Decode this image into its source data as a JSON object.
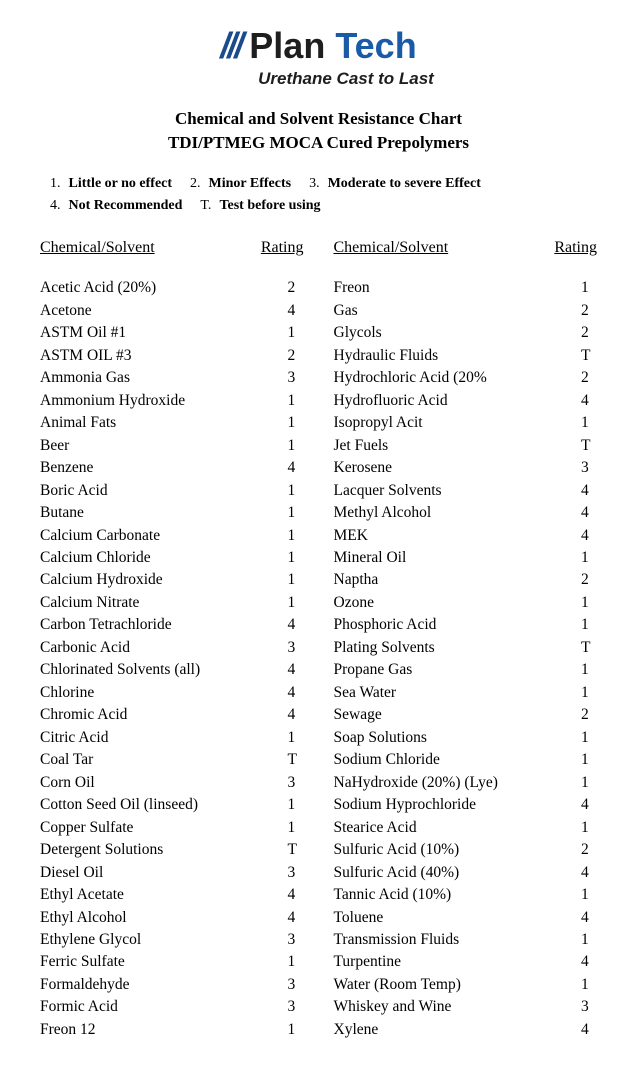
{
  "logo": {
    "plan": "Plan",
    "tech": "Tech",
    "tagline": "Urethane Cast to Last"
  },
  "title1": "Chemical and Solvent Resistance Chart",
  "title2": "TDI/PTMEG MOCA Cured Prepolymers",
  "legend": {
    "n1": "1.",
    "l1": "Little or no effect",
    "n2": "2.",
    "l2": "Minor Effects",
    "n3": "3.",
    "l3": "Moderate to severe Effect",
    "n4": "4.",
    "l4": "Not Recommended",
    "nT": "T.",
    "lT": "Test before using"
  },
  "headers": {
    "chem": "Chemical/Solvent",
    "rating": "Rating"
  },
  "left": [
    {
      "c": "Acetic Acid (20%)",
      "r": "2"
    },
    {
      "c": "Acetone",
      "r": "4"
    },
    {
      "c": "ASTM Oil   #1",
      "r": "1"
    },
    {
      "c": "ASTM OIL #3",
      "r": "2"
    },
    {
      "c": "Ammonia Gas",
      "r": "3"
    },
    {
      "c": "Ammonium Hydroxide",
      "r": "1"
    },
    {
      "c": "Animal Fats",
      "r": "1"
    },
    {
      "c": "Beer",
      "r": "1"
    },
    {
      "c": "Benzene",
      "r": "4"
    },
    {
      "c": "Boric Acid",
      "r": "1"
    },
    {
      "c": "Butane",
      "r": "1"
    },
    {
      "c": "Calcium Carbonate",
      "r": "1"
    },
    {
      "c": "Calcium Chloride",
      "r": "1"
    },
    {
      "c": "Calcium Hydroxide",
      "r": "1"
    },
    {
      "c": "Calcium Nitrate",
      "r": "1"
    },
    {
      "c": "Carbon Tetrachloride",
      "r": "4"
    },
    {
      "c": "Carbonic Acid",
      "r": "3"
    },
    {
      "c": "Chlorinated Solvents (all)",
      "r": "4"
    },
    {
      "c": "Chlorine",
      "r": "4"
    },
    {
      "c": "Chromic Acid",
      "r": "4"
    },
    {
      "c": "Citric Acid",
      "r": "1"
    },
    {
      "c": "Coal Tar",
      "r": "T"
    },
    {
      "c": "Corn Oil",
      "r": "3"
    },
    {
      "c": "Cotton Seed Oil (linseed)",
      "r": "1"
    },
    {
      "c": "Copper Sulfate",
      "r": "1"
    },
    {
      "c": "Detergent Solutions",
      "r": "T"
    },
    {
      "c": "Diesel Oil",
      "r": "3"
    },
    {
      "c": "Ethyl Acetate",
      "r": "4"
    },
    {
      "c": "Ethyl Alcohol",
      "r": "4"
    },
    {
      "c": "Ethylene Glycol",
      "r": "3"
    },
    {
      "c": "Ferric Sulfate",
      "r": "1"
    },
    {
      "c": "Formaldehyde",
      "r": "3"
    },
    {
      "c": "Formic Acid",
      "r": "3"
    },
    {
      "c": "Freon 12",
      "r": "1"
    }
  ],
  "right": [
    {
      "c": "Freon",
      "r": "1"
    },
    {
      "c": "Gas",
      "r": "2"
    },
    {
      "c": "Glycols",
      "r": "2"
    },
    {
      "c": "Hydraulic Fluids",
      "r": "T"
    },
    {
      "c": "Hydrochloric Acid (20%",
      "r": "2"
    },
    {
      "c": "Hydrofluoric Acid",
      "r": "4"
    },
    {
      "c": "Isopropyl Acit",
      "r": "1"
    },
    {
      "c": "Jet Fuels",
      "r": "T"
    },
    {
      "c": "Kerosene",
      "r": "3"
    },
    {
      "c": "Lacquer Solvents",
      "r": "4"
    },
    {
      "c": "Methyl Alcohol",
      "r": "4"
    },
    {
      "c": "MEK",
      "r": "4"
    },
    {
      "c": "Mineral Oil",
      "r": "1"
    },
    {
      "c": "Naptha",
      "r": "2"
    },
    {
      "c": "Ozone",
      "r": "1"
    },
    {
      "c": "Phosphoric Acid",
      "r": "1"
    },
    {
      "c": "Plating Solvents",
      "r": "T"
    },
    {
      "c": "Propane Gas",
      "r": "1"
    },
    {
      "c": "Sea Water",
      "r": "1"
    },
    {
      "c": "Sewage",
      "r": "2"
    },
    {
      "c": "Soap Solutions",
      "r": "1"
    },
    {
      "c": "Sodium Chloride",
      "r": "1"
    },
    {
      "c": "NaHydroxide (20%) (Lye)",
      "r": "1"
    },
    {
      "c": "Sodium Hyprochloride",
      "r": "4"
    },
    {
      "c": "Stearice Acid",
      "r": "1"
    },
    {
      "c": "Sulfuric Acid (10%)",
      "r": "2"
    },
    {
      "c": "Sulfuric Acid (40%)",
      "r": "4"
    },
    {
      "c": "Tannic Acid (10%)",
      "r": "1"
    },
    {
      "c": "Toluene",
      "r": "4"
    },
    {
      "c": "Transmission Fluids",
      "r": "1"
    },
    {
      "c": "Turpentine",
      "r": "4"
    },
    {
      "c": "Water (Room Temp)",
      "r": "1"
    },
    {
      "c": "Whiskey and Wine",
      "r": "3"
    },
    {
      "c": "Xylene",
      "r": "4"
    }
  ]
}
